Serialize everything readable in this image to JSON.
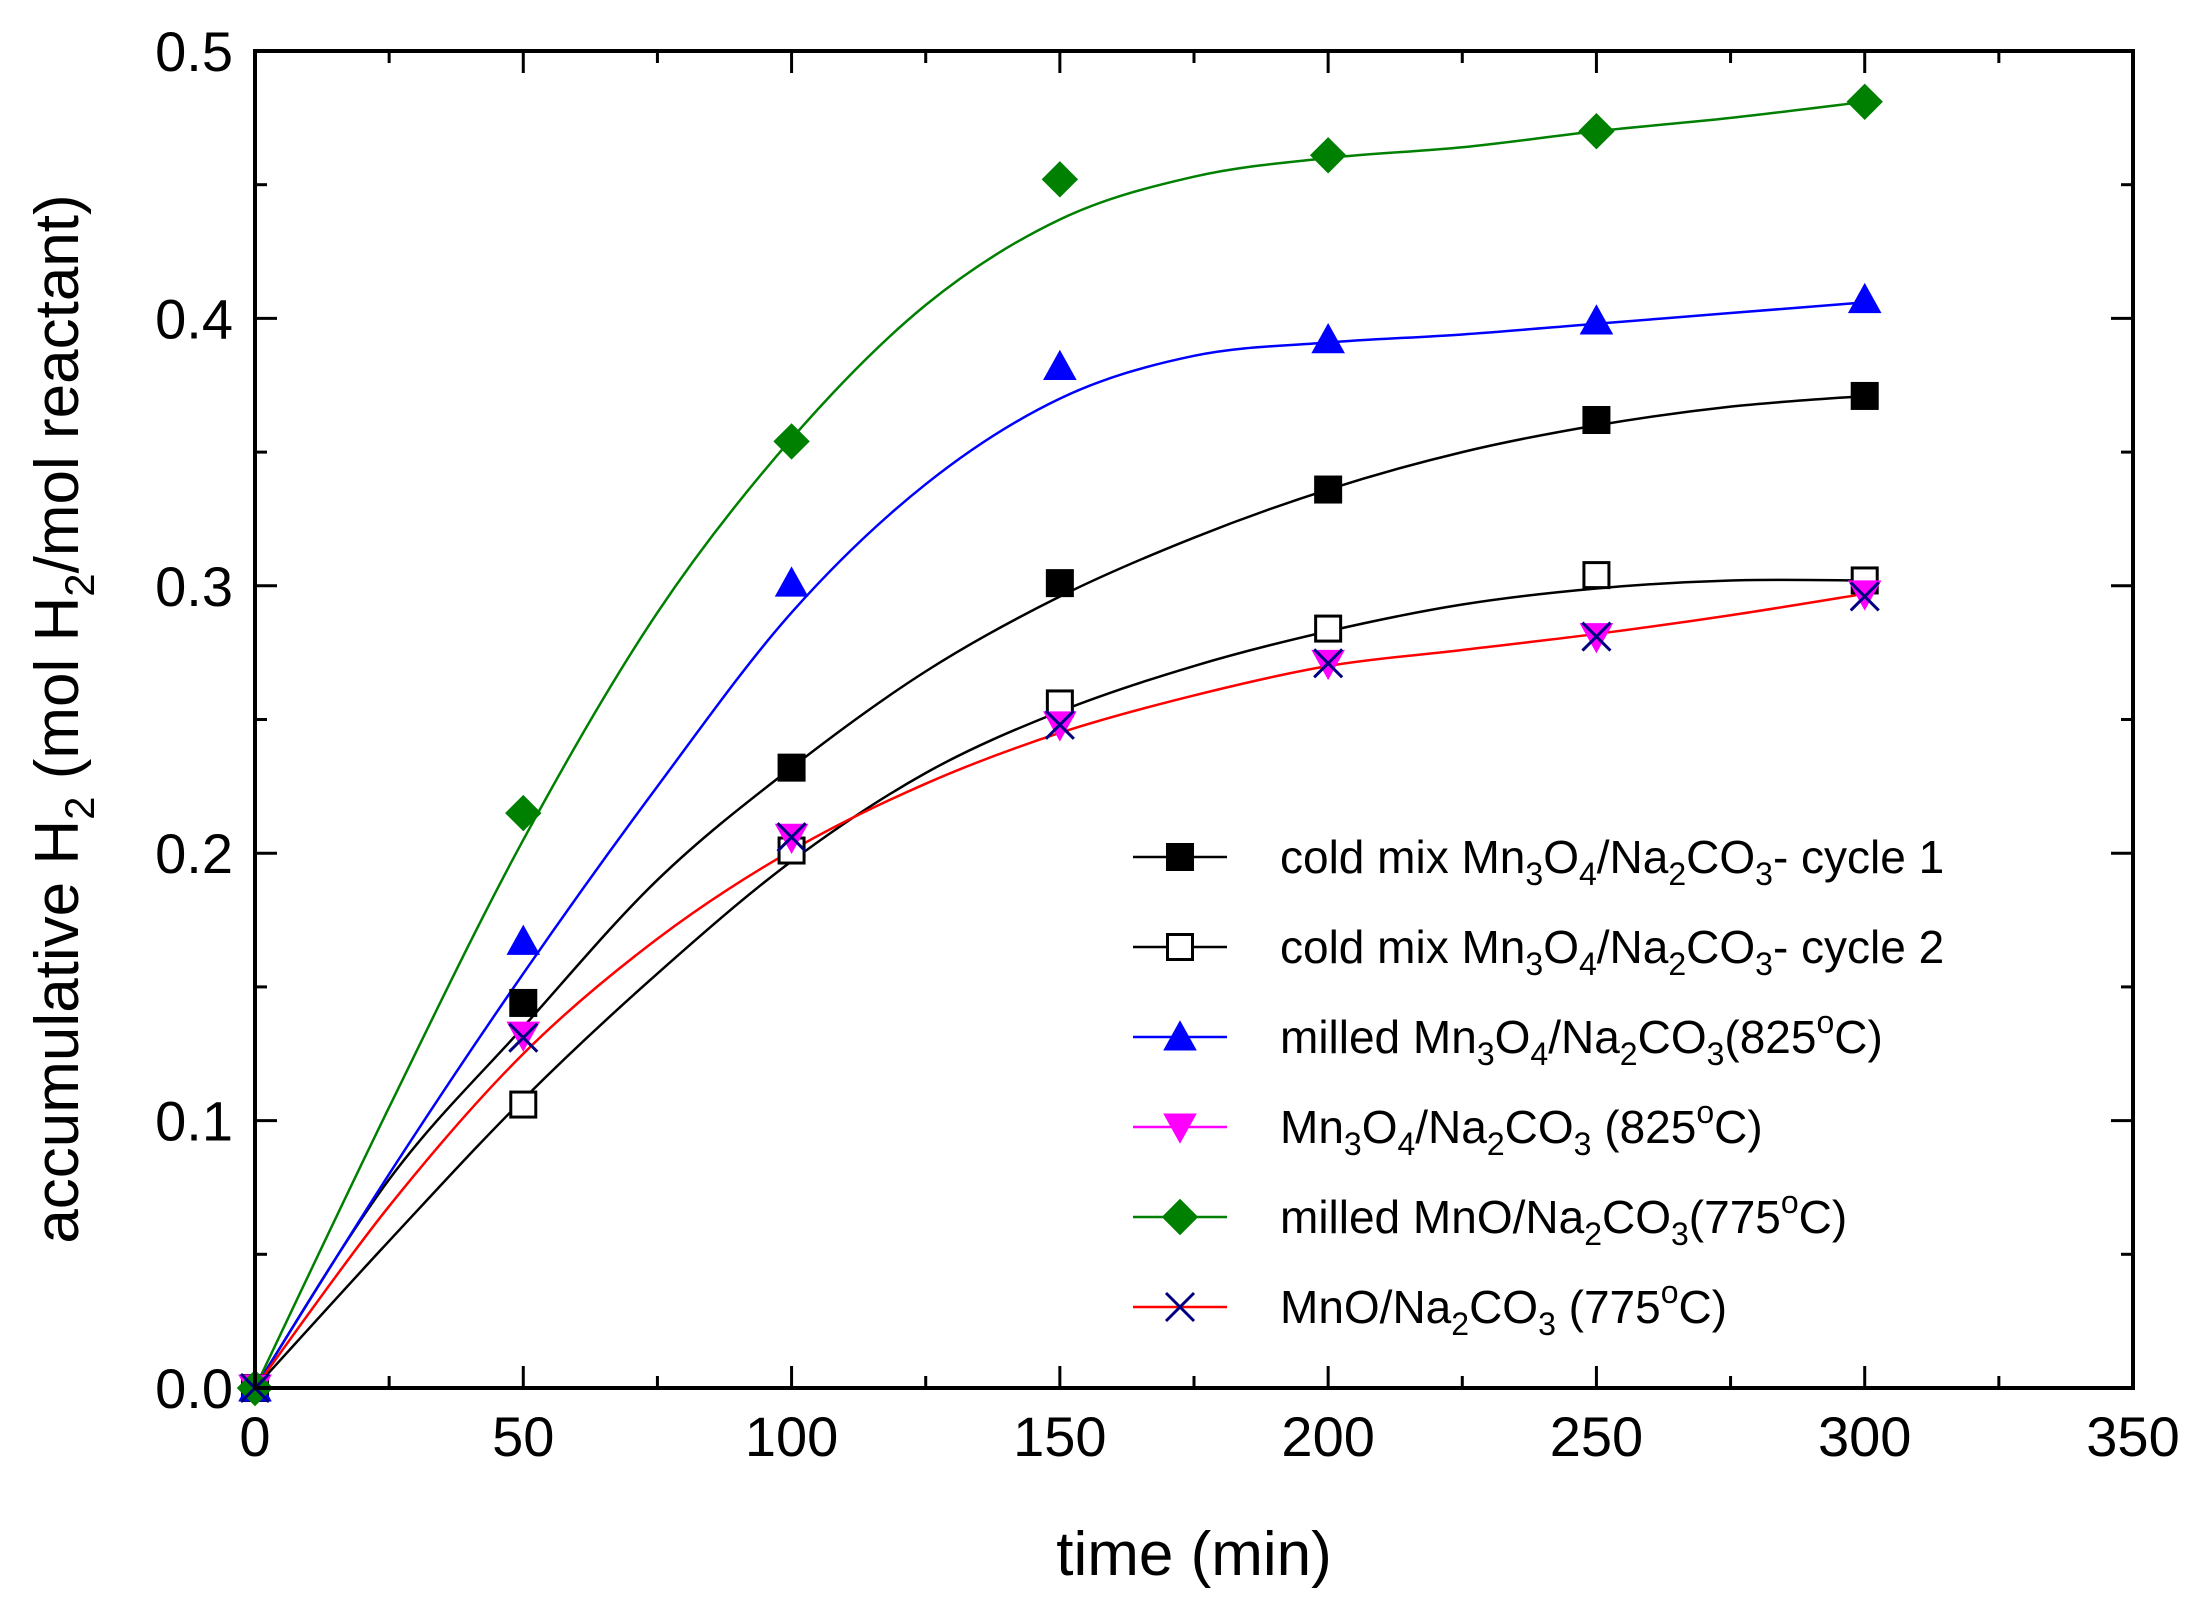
{
  "chart_data": {
    "type": "line",
    "xlabel": "time (min)",
    "ylabel": {
      "prefix": "accumulative H",
      "sub": "2",
      "middle": " (mol H",
      "sub2": "2",
      "suffix": "/mol reactant)"
    },
    "xlim": [
      0,
      350
    ],
    "ylim": [
      0,
      0.5
    ],
    "x_ticks": [
      "0",
      "50",
      "100",
      "150",
      "200",
      "250",
      "300",
      "350"
    ],
    "y_ticks": [
      "0.0",
      "0.1",
      "0.2",
      "0.3",
      "0.4",
      "0.5"
    ],
    "legend_position": "lower-right",
    "series": [
      {
        "name": "cold mix Mn3O4/Na2CO3- cycle 1",
        "label_parts": [
          [
            "cold mix Mn",
            ""
          ],
          [
            "3",
            "sub"
          ],
          [
            "O",
            ""
          ],
          [
            "4",
            "sub"
          ],
          [
            "/Na",
            ""
          ],
          [
            "2",
            "sub"
          ],
          [
            "CO",
            ""
          ],
          [
            "3",
            "sub"
          ],
          [
            "- cycle 1",
            ""
          ]
        ],
        "marker": "square-filled",
        "color": "#000000",
        "line_color": "#000000",
        "x": [
          0,
          50,
          100,
          150,
          200,
          250,
          300
        ],
        "y": [
          0.0,
          0.144,
          0.232,
          0.301,
          0.336,
          0.362,
          0.371
        ],
        "fit": [
          [
            0,
            0.0
          ],
          [
            25,
            0.078
          ],
          [
            50,
            0.135
          ],
          [
            75,
            0.19
          ],
          [
            100,
            0.232
          ],
          [
            125,
            0.268
          ],
          [
            150,
            0.296
          ],
          [
            175,
            0.318
          ],
          [
            200,
            0.336
          ],
          [
            225,
            0.35
          ],
          [
            250,
            0.36
          ],
          [
            275,
            0.367
          ],
          [
            300,
            0.371
          ]
        ]
      },
      {
        "name": "cold mix Mn3O4/Na2CO3- cycle 2",
        "label_parts": [
          [
            "cold mix Mn",
            ""
          ],
          [
            "3",
            "sub"
          ],
          [
            "O",
            ""
          ],
          [
            "4",
            "sub"
          ],
          [
            "/Na",
            ""
          ],
          [
            "2",
            "sub"
          ],
          [
            "CO",
            ""
          ],
          [
            "3",
            "sub"
          ],
          [
            "- cycle 2",
            ""
          ]
        ],
        "marker": "square-open",
        "color": "#000000",
        "line_color": "#000000",
        "x": [
          0,
          50,
          100,
          150,
          200,
          250,
          300
        ],
        "y": [
          0.0,
          0.106,
          0.201,
          0.256,
          0.284,
          0.304,
          0.302
        ],
        "fit": [
          [
            0,
            0.0
          ],
          [
            25,
            0.055
          ],
          [
            50,
            0.108
          ],
          [
            75,
            0.155
          ],
          [
            100,
            0.197
          ],
          [
            125,
            0.23
          ],
          [
            150,
            0.253
          ],
          [
            175,
            0.27
          ],
          [
            200,
            0.283
          ],
          [
            225,
            0.293
          ],
          [
            250,
            0.299
          ],
          [
            275,
            0.302
          ],
          [
            300,
            0.302
          ]
        ]
      },
      {
        "name": "milled Mn3O4/Na2CO3(825oC)",
        "label_parts": [
          [
            "milled Mn",
            ""
          ],
          [
            "3",
            "sub"
          ],
          [
            "O",
            ""
          ],
          [
            "4",
            "sub"
          ],
          [
            "/Na",
            ""
          ],
          [
            "2",
            "sub"
          ],
          [
            "CO",
            ""
          ],
          [
            "3",
            "sub"
          ],
          [
            "(825",
            ""
          ],
          [
            "o",
            "sup"
          ],
          [
            "C)",
            ""
          ]
        ],
        "marker": "triangle-up",
        "color": "#0000ff",
        "line_color": "#0000ff",
        "x": [
          0,
          50,
          100,
          150,
          200,
          250,
          300
        ],
        "y": [
          0.0,
          0.167,
          0.301,
          0.382,
          0.392,
          0.399,
          0.407
        ],
        "fit": [
          [
            0,
            0.0
          ],
          [
            25,
            0.08
          ],
          [
            50,
            0.155
          ],
          [
            75,
            0.225
          ],
          [
            100,
            0.29
          ],
          [
            125,
            0.338
          ],
          [
            150,
            0.37
          ],
          [
            175,
            0.386
          ],
          [
            200,
            0.391
          ],
          [
            225,
            0.394
          ],
          [
            250,
            0.398
          ],
          [
            275,
            0.402
          ],
          [
            300,
            0.406
          ]
        ]
      },
      {
        "name": "Mn3O4/Na2CO3 (825oC)",
        "label_parts": [
          [
            "Mn",
            ""
          ],
          [
            "3",
            "sub"
          ],
          [
            "O",
            ""
          ],
          [
            "4",
            "sub"
          ],
          [
            "/Na",
            ""
          ],
          [
            "2",
            "sub"
          ],
          [
            "CO",
            ""
          ],
          [
            "3",
            "sub"
          ],
          [
            " (825",
            ""
          ],
          [
            "o",
            "sup"
          ],
          [
            "C)",
            ""
          ]
        ],
        "marker": "triangle-down",
        "color": "#ff00ff",
        "line_color": "#ff00ff",
        "x": [
          0,
          50,
          100,
          150,
          200,
          250,
          300
        ],
        "y": [
          0.0,
          0.132,
          0.206,
          0.248,
          0.271,
          0.281,
          0.297
        ],
        "fit": []
      },
      {
        "name": "milled MnO/Na2CO3(775oC)",
        "label_parts": [
          [
            "milled MnO/Na",
            ""
          ],
          [
            "2",
            "sub"
          ],
          [
            "CO",
            ""
          ],
          [
            "3",
            "sub"
          ],
          [
            "(775",
            ""
          ],
          [
            "o",
            "sup"
          ],
          [
            "C)",
            ""
          ]
        ],
        "marker": "diamond",
        "color": "#008000",
        "line_color": "#008000",
        "x": [
          0,
          50,
          100,
          150,
          200,
          250,
          300
        ],
        "y": [
          0.0,
          0.215,
          0.354,
          0.452,
          0.461,
          0.47,
          0.481
        ],
        "fit": [
          [
            0,
            0.0
          ],
          [
            25,
            0.105
          ],
          [
            50,
            0.205
          ],
          [
            75,
            0.29
          ],
          [
            100,
            0.355
          ],
          [
            125,
            0.405
          ],
          [
            150,
            0.437
          ],
          [
            175,
            0.453
          ],
          [
            200,
            0.46
          ],
          [
            225,
            0.464
          ],
          [
            250,
            0.47
          ],
          [
            275,
            0.475
          ],
          [
            300,
            0.481
          ]
        ]
      },
      {
        "name": "MnO/Na2CO3 (775oC)",
        "label_parts": [
          [
            "MnO/Na",
            ""
          ],
          [
            "2",
            "sub"
          ],
          [
            "CO",
            ""
          ],
          [
            "3",
            "sub"
          ],
          [
            " (775",
            ""
          ],
          [
            "o",
            "sup"
          ],
          [
            "C)",
            ""
          ]
        ],
        "marker": "x",
        "color": "#000080",
        "line_color": "#ff0000",
        "x": [
          0,
          50,
          100,
          150,
          200,
          250,
          300
        ],
        "y": [
          0.0,
          0.131,
          0.206,
          0.248,
          0.271,
          0.281,
          0.296
        ],
        "fit": [
          [
            0,
            0.0
          ],
          [
            25,
            0.068
          ],
          [
            50,
            0.125
          ],
          [
            75,
            0.168
          ],
          [
            100,
            0.201
          ],
          [
            125,
            0.226
          ],
          [
            150,
            0.245
          ],
          [
            175,
            0.259
          ],
          [
            200,
            0.27
          ],
          [
            225,
            0.276
          ],
          [
            250,
            0.282
          ],
          [
            275,
            0.289
          ],
          [
            300,
            0.297
          ]
        ]
      }
    ]
  }
}
